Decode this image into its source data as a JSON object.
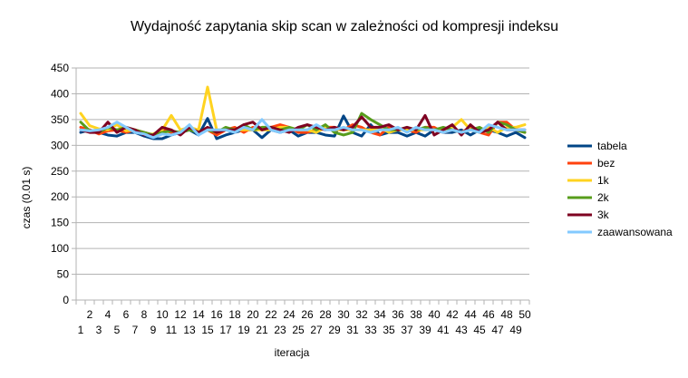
{
  "chart_data": {
    "type": "line",
    "title": "Wydajność zapytania skip scan w zależności od kompresji indeksu",
    "xlabel": "iteracja",
    "ylabel": "czas (0.01 s)",
    "ylim": [
      0,
      450
    ],
    "yticks": [
      "0",
      "50",
      "100",
      "150",
      "200",
      "250",
      "300",
      "350",
      "400",
      "450"
    ],
    "grid": "horizontal",
    "legend_position": "right",
    "x": [
      1,
      2,
      3,
      4,
      5,
      6,
      7,
      8,
      9,
      10,
      11,
      12,
      13,
      14,
      15,
      16,
      17,
      18,
      19,
      20,
      21,
      22,
      23,
      24,
      25,
      26,
      27,
      28,
      29,
      30,
      31,
      32,
      33,
      34,
      35,
      36,
      37,
      38,
      39,
      40,
      41,
      42,
      43,
      44,
      45,
      46,
      47,
      48,
      49,
      50
    ],
    "xtick_labels": [
      "1",
      "2",
      "3",
      "4",
      "5",
      "6",
      "7",
      "8",
      "9",
      "10",
      "11",
      "12",
      "13",
      "14",
      "15",
      "16",
      "17",
      "18",
      "19",
      "20",
      "21",
      "22",
      "23",
      "24",
      "25",
      "26",
      "27",
      "28",
      "29",
      "30",
      "31",
      "32",
      "33",
      "34",
      "35",
      "36",
      "37",
      "38",
      "39",
      "40",
      "41",
      "42",
      "43",
      "44",
      "45",
      "46",
      "47",
      "48",
      "49",
      "50"
    ],
    "series": [
      {
        "name": "tabela",
        "color": "#004586",
        "values": [
          325,
          330,
          325,
          320,
          318,
          325,
          325,
          318,
          313,
          313,
          320,
          325,
          330,
          320,
          352,
          313,
          320,
          325,
          330,
          330,
          315,
          330,
          325,
          330,
          318,
          325,
          325,
          320,
          318,
          357,
          325,
          318,
          340,
          320,
          325,
          325,
          318,
          325,
          318,
          330,
          325,
          325,
          330,
          320,
          330,
          330,
          325,
          318,
          325,
          315
        ]
      },
      {
        "name": "bez",
        "color": "#ff420e",
        "values": [
          335,
          330,
          322,
          328,
          330,
          325,
          330,
          325,
          320,
          330,
          325,
          322,
          335,
          325,
          330,
          320,
          330,
          335,
          325,
          335,
          330,
          335,
          340,
          335,
          325,
          325,
          330,
          335,
          335,
          330,
          340,
          335,
          325,
          320,
          335,
          330,
          330,
          325,
          335,
          335,
          325,
          330,
          325,
          335,
          325,
          320,
          345,
          345,
          330,
          325
        ]
      },
      {
        "name": "1k",
        "color": "#ffd320",
        "values": [
          362,
          338,
          332,
          330,
          340,
          328,
          330,
          322,
          322,
          330,
          358,
          330,
          335,
          330,
          413,
          330,
          330,
          330,
          330,
          330,
          330,
          330,
          335,
          335,
          330,
          330,
          325,
          335,
          330,
          330,
          330,
          330,
          330,
          335,
          325,
          330,
          330,
          330,
          330,
          330,
          330,
          335,
          350,
          330,
          325,
          335,
          325,
          335,
          335,
          340
        ]
      },
      {
        "name": "2k",
        "color": "#579d1c",
        "values": [
          345,
          328,
          325,
          335,
          330,
          335,
          330,
          325,
          320,
          325,
          328,
          325,
          330,
          325,
          330,
          325,
          335,
          330,
          340,
          330,
          335,
          335,
          330,
          335,
          330,
          340,
          330,
          340,
          325,
          320,
          325,
          362,
          350,
          340,
          330,
          330,
          335,
          330,
          335,
          330,
          335,
          330,
          325,
          330,
          335,
          325,
          345,
          340,
          330,
          325
        ]
      },
      {
        "name": "3k",
        "color": "#7e0021",
        "values": [
          330,
          325,
          325,
          345,
          325,
          335,
          330,
          320,
          320,
          335,
          330,
          320,
          335,
          325,
          335,
          325,
          330,
          330,
          340,
          345,
          330,
          335,
          330,
          325,
          335,
          340,
          335,
          330,
          335,
          330,
          335,
          355,
          335,
          335,
          340,
          330,
          335,
          330,
          358,
          320,
          330,
          340,
          320,
          340,
          325,
          330,
          345,
          330,
          330,
          330
        ]
      },
      {
        "name": "zaawansowana",
        "color": "#83caff",
        "values": [
          330,
          328,
          330,
          335,
          345,
          335,
          325,
          322,
          315,
          322,
          320,
          325,
          340,
          320,
          330,
          330,
          330,
          325,
          335,
          330,
          350,
          330,
          325,
          330,
          330,
          330,
          340,
          330,
          330,
          335,
          330,
          330,
          325,
          330,
          330,
          335,
          325,
          335,
          330,
          330,
          325,
          330,
          325,
          330,
          325,
          340,
          335,
          330,
          330,
          330
        ]
      }
    ]
  }
}
